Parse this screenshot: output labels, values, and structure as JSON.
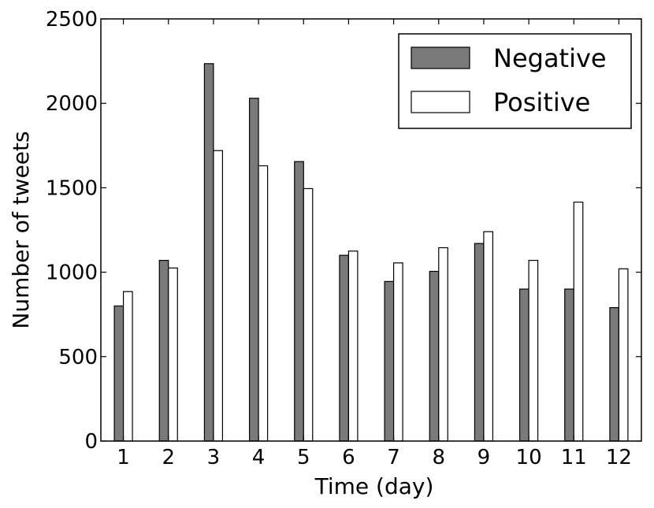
{
  "chart_data": {
    "type": "bar",
    "title": "",
    "xlabel": "Time (day)",
    "ylabel": "Number of tweets",
    "categories": [
      "1",
      "2",
      "3",
      "4",
      "5",
      "6",
      "7",
      "8",
      "9",
      "10",
      "11",
      "12"
    ],
    "series": [
      {
        "name": "Negative",
        "color": "#7a7a7a",
        "values": [
          800,
          1070,
          2235,
          2030,
          1655,
          1100,
          945,
          1005,
          1170,
          900,
          900,
          790
        ]
      },
      {
        "name": "Positive",
        "color": "#ffffff",
        "values": [
          885,
          1025,
          1720,
          1630,
          1495,
          1125,
          1055,
          1145,
          1240,
          1070,
          1415,
          1020
        ]
      }
    ],
    "ylim": [
      0,
      2500
    ],
    "yticks": [
      0,
      500,
      1000,
      1500,
      2000,
      2500
    ],
    "grid": false,
    "legend_position": "top-right"
  }
}
